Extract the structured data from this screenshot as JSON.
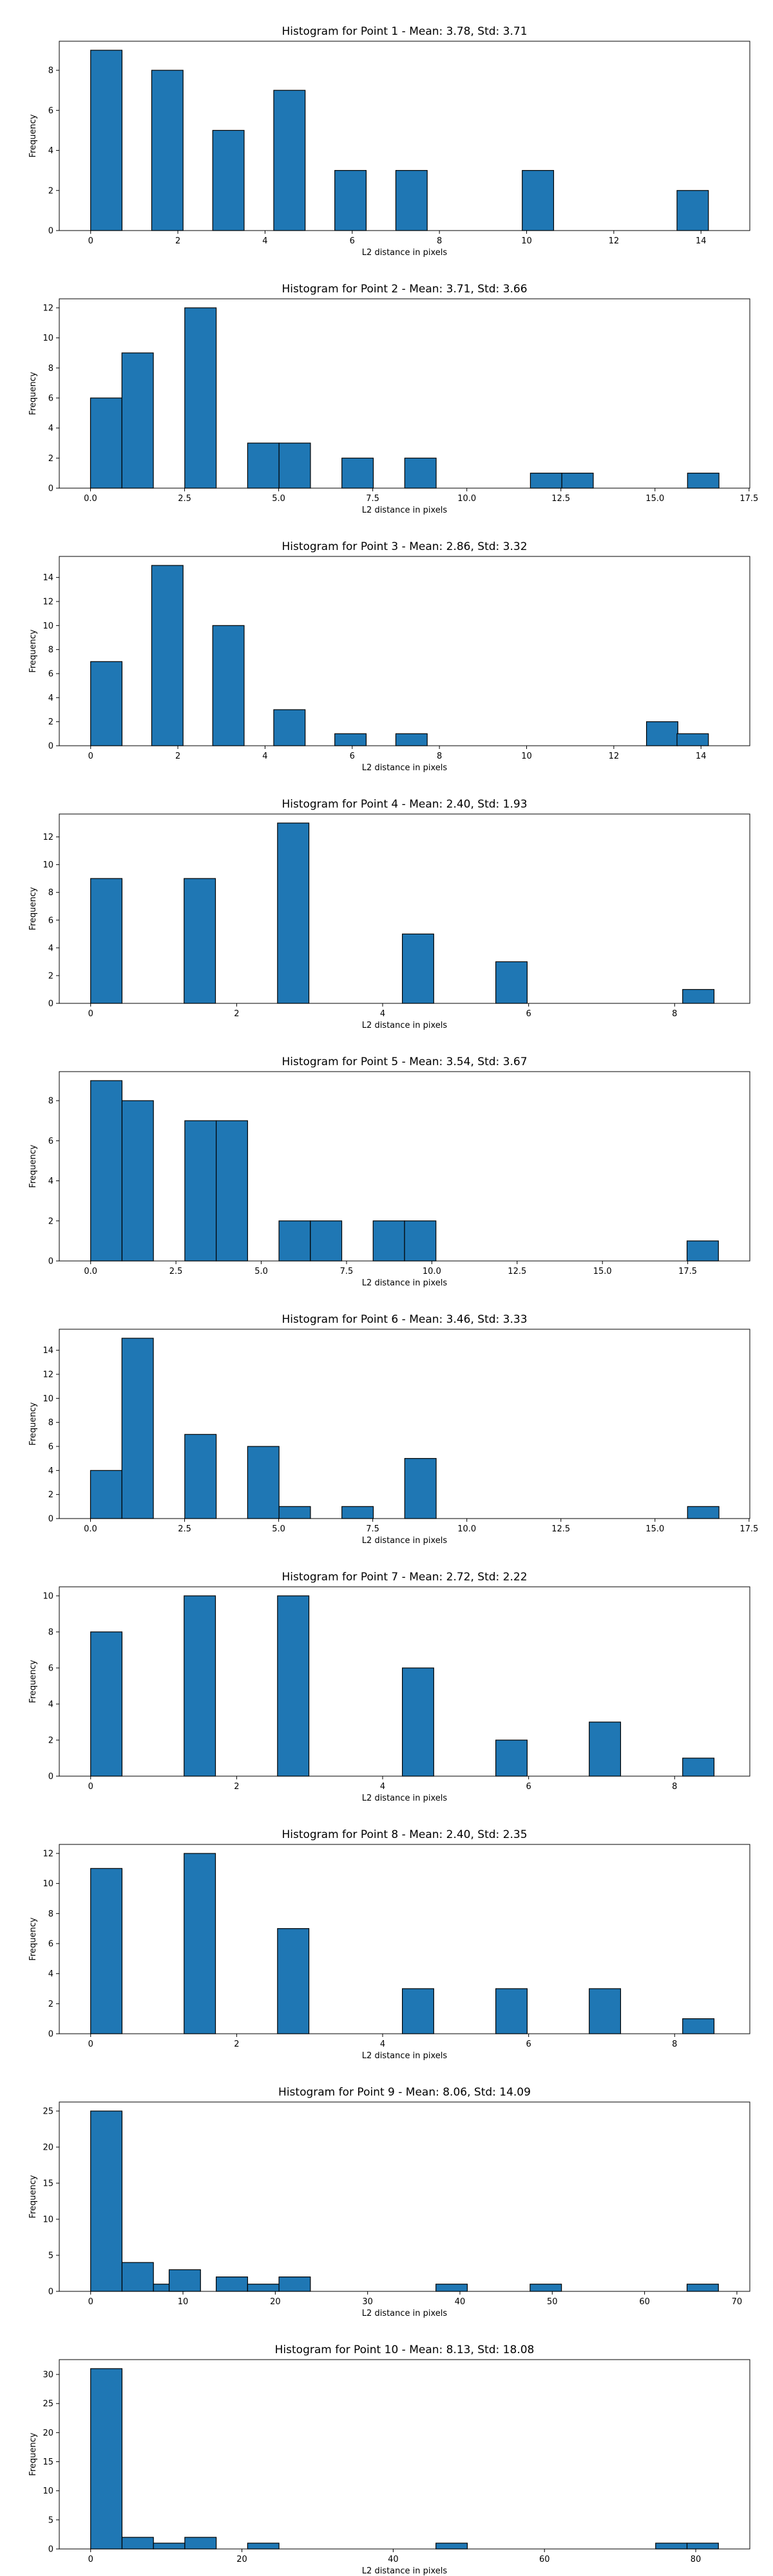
{
  "chart_data": [
    {
      "type": "bar",
      "title": "Histogram for Point 1 - Mean: 3.78, Std: 3.71",
      "xlabel": "L2 distance in pixels",
      "ylabel": "Frequency",
      "xlim": [
        -0.72,
        15.12
      ],
      "ylim": [
        0,
        9.45
      ],
      "xticks": [
        0,
        2,
        4,
        6,
        8,
        10,
        12,
        14
      ],
      "yticks": [
        0,
        2,
        4,
        6,
        8
      ],
      "bin_width": 0.72,
      "bins": [
        {
          "x": 0.0,
          "count": 9
        },
        {
          "x": 1.4,
          "count": 8
        },
        {
          "x": 2.8,
          "count": 5
        },
        {
          "x": 4.2,
          "count": 7
        },
        {
          "x": 5.6,
          "count": 3
        },
        {
          "x": 7.0,
          "count": 3
        },
        {
          "x": 9.9,
          "count": 3
        },
        {
          "x": 13.45,
          "count": 2
        }
      ],
      "color": "#1f77b4"
    },
    {
      "type": "bar",
      "title": "Histogram for Point 2 - Mean: 3.71, Std: 3.66",
      "xlabel": "L2 distance in pixels",
      "ylabel": "Frequency",
      "xlim": [
        -0.83,
        17.52
      ],
      "ylim": [
        0,
        12.6
      ],
      "xticks": [
        0.0,
        2.5,
        5.0,
        7.5,
        10.0,
        12.5,
        15.0,
        17.5
      ],
      "yticks": [
        0,
        2,
        4,
        6,
        8,
        10,
        12
      ],
      "bin_width": 0.835,
      "bins": [
        {
          "x": 0.0,
          "count": 6
        },
        {
          "x": 0.835,
          "count": 9
        },
        {
          "x": 2.505,
          "count": 12
        },
        {
          "x": 4.175,
          "count": 3
        },
        {
          "x": 5.01,
          "count": 3
        },
        {
          "x": 6.68,
          "count": 2
        },
        {
          "x": 8.35,
          "count": 2
        },
        {
          "x": 11.69,
          "count": 1
        },
        {
          "x": 12.525,
          "count": 1
        },
        {
          "x": 15.865,
          "count": 1
        }
      ],
      "color": "#1f77b4"
    },
    {
      "type": "bar",
      "title": "Histogram for Point 3 - Mean: 2.86, Std: 3.32",
      "xlabel": "L2 distance in pixels",
      "ylabel": "Frequency",
      "xlim": [
        -0.72,
        15.12
      ],
      "ylim": [
        0,
        15.75
      ],
      "xticks": [
        0,
        2,
        4,
        6,
        8,
        10,
        12,
        14
      ],
      "yticks": [
        0,
        2,
        4,
        6,
        8,
        10,
        12,
        14
      ],
      "bin_width": 0.72,
      "bins": [
        {
          "x": 0.0,
          "count": 7
        },
        {
          "x": 1.4,
          "count": 15
        },
        {
          "x": 2.8,
          "count": 10
        },
        {
          "x": 4.2,
          "count": 3
        },
        {
          "x": 5.6,
          "count": 1
        },
        {
          "x": 7.0,
          "count": 1
        },
        {
          "x": 12.75,
          "count": 2
        },
        {
          "x": 13.45,
          "count": 1
        }
      ],
      "color": "#1f77b4"
    },
    {
      "type": "bar",
      "title": "Histogram for Point 4 - Mean: 2.40, Std: 1.93",
      "xlabel": "L2 distance in pixels",
      "ylabel": "Frequency",
      "xlim": [
        -0.43,
        9.03
      ],
      "ylim": [
        0,
        13.65
      ],
      "xticks": [
        0,
        2,
        4,
        6,
        8
      ],
      "yticks": [
        0,
        2,
        4,
        6,
        8,
        10,
        12
      ],
      "bin_width": 0.43,
      "bins": [
        {
          "x": 0.0,
          "count": 9
        },
        {
          "x": 1.28,
          "count": 9
        },
        {
          "x": 2.56,
          "count": 13
        },
        {
          "x": 4.27,
          "count": 5
        },
        {
          "x": 5.55,
          "count": 3
        },
        {
          "x": 8.11,
          "count": 1
        }
      ],
      "color": "#1f77b4"
    },
    {
      "type": "bar",
      "title": "Histogram for Point 5 - Mean: 3.54, Std: 3.67",
      "xlabel": "L2 distance in pixels",
      "ylabel": "Frequency",
      "xlim": [
        -0.92,
        19.32
      ],
      "ylim": [
        0,
        9.45
      ],
      "xticks": [
        0.0,
        2.5,
        5.0,
        7.5,
        10.0,
        12.5,
        15.0,
        17.5
      ],
      "yticks": [
        0,
        2,
        4,
        6,
        8
      ],
      "bin_width": 0.92,
      "bins": [
        {
          "x": 0.0,
          "count": 9
        },
        {
          "x": 0.92,
          "count": 8
        },
        {
          "x": 2.76,
          "count": 7
        },
        {
          "x": 3.68,
          "count": 7
        },
        {
          "x": 5.52,
          "count": 2
        },
        {
          "x": 6.44,
          "count": 2
        },
        {
          "x": 8.28,
          "count": 2
        },
        {
          "x": 9.2,
          "count": 2
        },
        {
          "x": 17.48,
          "count": 1
        }
      ],
      "color": "#1f77b4"
    },
    {
      "type": "bar",
      "title": "Histogram for Point 6 - Mean: 3.46, Std: 3.33",
      "xlabel": "L2 distance in pixels",
      "ylabel": "Frequency",
      "xlim": [
        -0.83,
        17.52
      ],
      "ylim": [
        0,
        15.75
      ],
      "xticks": [
        0.0,
        2.5,
        5.0,
        7.5,
        10.0,
        12.5,
        15.0,
        17.5
      ],
      "yticks": [
        0,
        2,
        4,
        6,
        8,
        10,
        12,
        14
      ],
      "bin_width": 0.835,
      "bins": [
        {
          "x": 0.0,
          "count": 4
        },
        {
          "x": 0.835,
          "count": 15
        },
        {
          "x": 2.505,
          "count": 7
        },
        {
          "x": 4.175,
          "count": 6
        },
        {
          "x": 5.01,
          "count": 1
        },
        {
          "x": 6.68,
          "count": 1
        },
        {
          "x": 8.35,
          "count": 5
        },
        {
          "x": 15.865,
          "count": 1
        }
      ],
      "color": "#1f77b4"
    },
    {
      "type": "bar",
      "title": "Histogram for Point 7 - Mean: 2.72, Std: 2.22",
      "xlabel": "L2 distance in pixels",
      "ylabel": "Frequency",
      "xlim": [
        -0.43,
        9.03
      ],
      "ylim": [
        0,
        10.5
      ],
      "xticks": [
        0,
        2,
        4,
        6,
        8
      ],
      "yticks": [
        0,
        2,
        4,
        6,
        8,
        10
      ],
      "bin_width": 0.43,
      "bins": [
        {
          "x": 0.0,
          "count": 8
        },
        {
          "x": 1.28,
          "count": 10
        },
        {
          "x": 2.56,
          "count": 10
        },
        {
          "x": 4.27,
          "count": 6
        },
        {
          "x": 5.55,
          "count": 2
        },
        {
          "x": 6.83,
          "count": 3
        },
        {
          "x": 8.11,
          "count": 1
        }
      ],
      "color": "#1f77b4"
    },
    {
      "type": "bar",
      "title": "Histogram for Point 8 - Mean: 2.40, Std: 2.35",
      "xlabel": "L2 distance in pixels",
      "ylabel": "Frequency",
      "xlim": [
        -0.43,
        9.03
      ],
      "ylim": [
        0,
        12.6
      ],
      "xticks": [
        0,
        2,
        4,
        6,
        8
      ],
      "yticks": [
        0,
        2,
        4,
        6,
        8,
        10,
        12
      ],
      "bin_width": 0.43,
      "bins": [
        {
          "x": 0.0,
          "count": 11
        },
        {
          "x": 1.28,
          "count": 12
        },
        {
          "x": 2.56,
          "count": 7
        },
        {
          "x": 4.27,
          "count": 3
        },
        {
          "x": 5.55,
          "count": 3
        },
        {
          "x": 6.83,
          "count": 3
        },
        {
          "x": 8.11,
          "count": 1
        }
      ],
      "color": "#1f77b4"
    },
    {
      "type": "bar",
      "title": "Histogram for Point 9 - Mean: 8.06, Std: 14.09",
      "xlabel": "L2 distance in pixels",
      "ylabel": "Frequency",
      "xlim": [
        -3.4,
        71.4
      ],
      "ylim": [
        0,
        26.25
      ],
      "xticks": [
        0,
        10,
        20,
        30,
        40,
        50,
        60,
        70
      ],
      "yticks": [
        0,
        5,
        10,
        15,
        20,
        25
      ],
      "bin_width": 3.4,
      "bins": [
        {
          "x": 0.0,
          "count": 25
        },
        {
          "x": 3.4,
          "count": 4
        },
        {
          "x": 6.8,
          "count": 1
        },
        {
          "x": 8.5,
          "count": 3
        },
        {
          "x": 13.6,
          "count": 2
        },
        {
          "x": 17.0,
          "count": 1
        },
        {
          "x": 20.4,
          "count": 2
        },
        {
          "x": 37.4,
          "count": 1
        },
        {
          "x": 47.6,
          "count": 1
        },
        {
          "x": 64.6,
          "count": 1
        }
      ],
      "color": "#1f77b4"
    },
    {
      "type": "bar",
      "title": "Histogram for Point 10 - Mean: 8.13, Std: 18.08",
      "xlabel": "L2 distance in pixels",
      "ylabel": "Frequency",
      "xlim": [
        -4.15,
        87.15
      ],
      "ylim": [
        0,
        32.55
      ],
      "xticks": [
        0,
        20,
        40,
        60,
        80
      ],
      "yticks": [
        0,
        5,
        10,
        15,
        20,
        25,
        30
      ],
      "bin_width": 4.15,
      "bins": [
        {
          "x": 0.0,
          "count": 31
        },
        {
          "x": 4.15,
          "count": 2
        },
        {
          "x": 8.3,
          "count": 1
        },
        {
          "x": 12.45,
          "count": 2
        },
        {
          "x": 20.75,
          "count": 1
        },
        {
          "x": 45.65,
          "count": 1
        },
        {
          "x": 74.7,
          "count": 1
        },
        {
          "x": 78.85,
          "count": 1
        }
      ],
      "color": "#1f77b4"
    }
  ]
}
